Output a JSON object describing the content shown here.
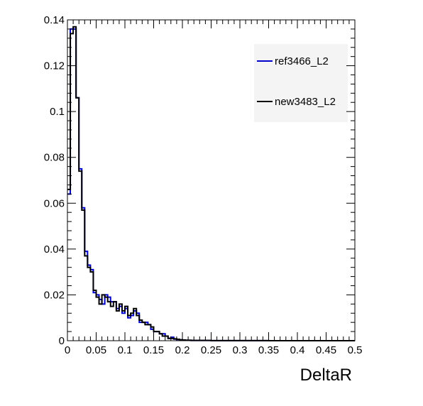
{
  "chart_data": {
    "type": "step",
    "xlabel": "DeltaR",
    "ylabel": "",
    "title": "",
    "xlim": [
      0,
      0.5
    ],
    "ylim": [
      0,
      0.14
    ],
    "bin_width": 0.005,
    "x_ticks": [
      "0",
      "0.05",
      "0.1",
      "0.15",
      "0.2",
      "0.25",
      "0.3",
      "0.35",
      "0.4",
      "0.45",
      "0.5"
    ],
    "y_ticks": [
      "0",
      "0.02",
      "0.04",
      "0.06",
      "0.08",
      "0.1",
      "0.12",
      "0.14"
    ],
    "x_tick_values": [
      0,
      0.05,
      0.1,
      0.15,
      0.2,
      0.25,
      0.3,
      0.35,
      0.4,
      0.45,
      0.5
    ],
    "y_tick_values": [
      0,
      0.02,
      0.04,
      0.06,
      0.08,
      0.1,
      0.12,
      0.14
    ],
    "grid": false,
    "legend_position": "top-right",
    "series": [
      {
        "name": "ref3466_L2",
        "color": "#0000cc",
        "values": [
          0.064,
          0.136,
          0.136,
          0.106,
          0.075,
          0.058,
          0.039,
          0.033,
          0.031,
          0.021,
          0.02,
          0.018,
          0.016,
          0.02,
          0.019,
          0.017,
          0.017,
          0.014,
          0.015,
          0.012,
          0.014,
          0.01,
          0.011,
          0.013,
          0.012,
          0.008,
          0.008,
          0.008,
          0.007,
          0.005,
          0.004,
          0.004,
          0.003,
          0.003,
          0.002,
          0.001,
          0.0015,
          0.0007,
          0.0005,
          0.0004,
          0.0003,
          0.0002,
          0.0002,
          0.0001,
          0.0001,
          0.0001,
          0.0001,
          0.0001,
          0.0001,
          0.0001,
          5e-05,
          5e-05,
          5e-05,
          5e-05,
          5e-05,
          5e-05,
          5e-05,
          5e-05,
          5e-05,
          5e-05,
          3e-05,
          3e-05,
          3e-05,
          3e-05,
          3e-05,
          3e-05,
          3e-05,
          3e-05,
          3e-05,
          3e-05,
          2e-05,
          2e-05,
          2e-05,
          2e-05,
          2e-05,
          2e-05,
          2e-05,
          2e-05,
          2e-05,
          2e-05,
          1e-05,
          1e-05,
          1e-05,
          1e-05,
          1e-05,
          1e-05,
          1e-05,
          1e-05,
          1e-05,
          1e-05,
          0,
          0,
          0,
          0,
          0,
          0,
          0,
          0,
          0,
          0
        ]
      },
      {
        "name": "new3483_L2",
        "color": "#000000",
        "values": [
          0.066,
          0.134,
          0.137,
          0.106,
          0.074,
          0.057,
          0.037,
          0.032,
          0.03,
          0.022,
          0.019,
          0.016,
          0.02,
          0.019,
          0.017,
          0.015,
          0.017,
          0.013,
          0.016,
          0.013,
          0.015,
          0.011,
          0.012,
          0.014,
          0.011,
          0.009,
          0.008,
          0.007,
          0.007,
          0.006,
          0.004,
          0.004,
          0.003,
          0.002,
          0.002,
          0.001,
          0.001,
          0.0008,
          0.0006,
          0.0004,
          0.0003,
          0.0002,
          0.0002,
          0.0001,
          0.0001,
          0.0001,
          0.0001,
          0.0001,
          0.0001,
          0.0001,
          5e-05,
          5e-05,
          5e-05,
          5e-05,
          5e-05,
          5e-05,
          5e-05,
          5e-05,
          5e-05,
          5e-05,
          3e-05,
          3e-05,
          3e-05,
          3e-05,
          3e-05,
          3e-05,
          3e-05,
          3e-05,
          3e-05,
          3e-05,
          2e-05,
          2e-05,
          2e-05,
          2e-05,
          2e-05,
          2e-05,
          2e-05,
          2e-05,
          2e-05,
          2e-05,
          1e-05,
          1e-05,
          1e-05,
          1e-05,
          1e-05,
          1e-05,
          1e-05,
          1e-05,
          1e-05,
          1e-05,
          0,
          0,
          0,
          0,
          0,
          0,
          0,
          0,
          0,
          0
        ]
      }
    ]
  }
}
